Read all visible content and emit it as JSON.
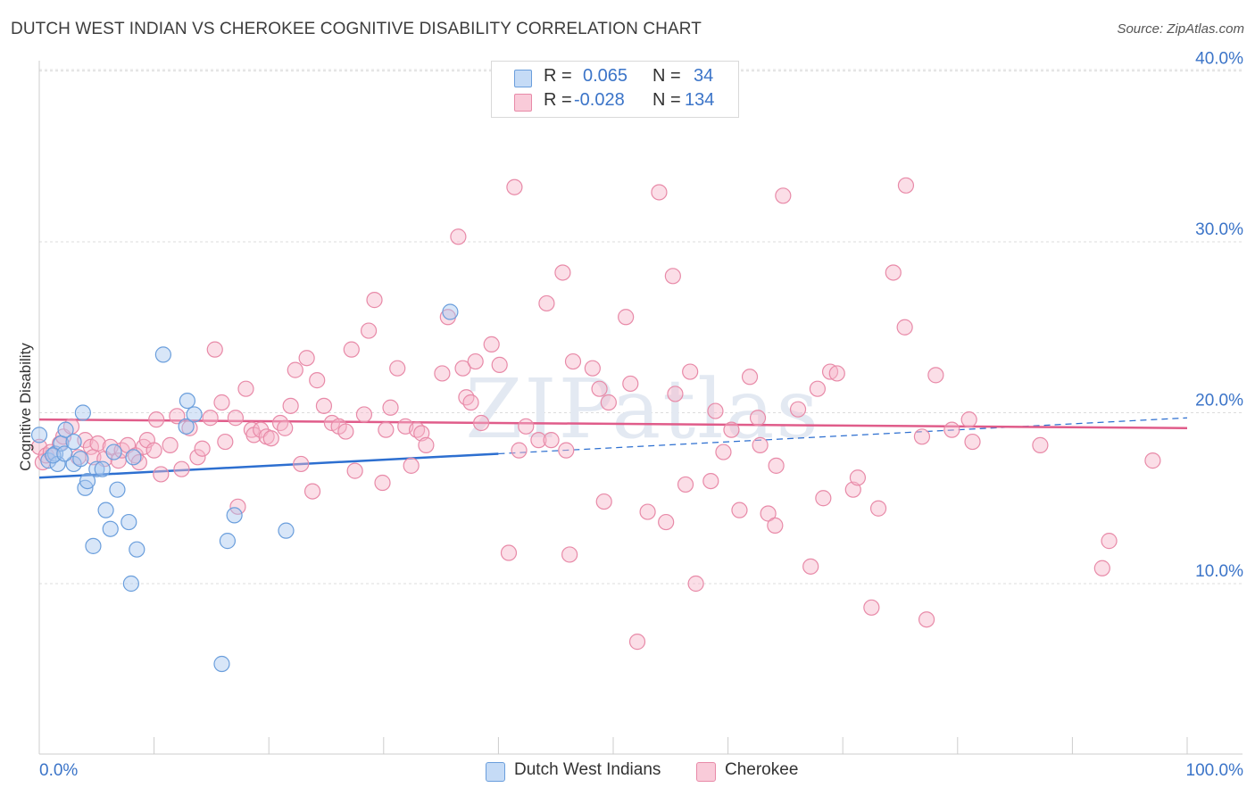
{
  "title": "DUTCH WEST INDIAN VS CHEROKEE COGNITIVE DISABILITY CORRELATION CHART",
  "source": "Source: ZipAtlas.com",
  "watermark": "ZIPatlas",
  "colors": {
    "blue_fill": "#a8c8f0",
    "blue_stroke": "#6a9edc",
    "blue_line": "#2d6fd0",
    "pink_fill": "#f7b6c9",
    "pink_stroke": "#e88aa8",
    "pink_line": "#e05c8a",
    "axis_text": "#3b74c8"
  },
  "legend_top": {
    "rows": [
      {
        "r_label": "R =",
        "r_value": "0.065",
        "n_label": "N =",
        "n_value": "34",
        "series": "blue"
      },
      {
        "r_label": "R =",
        "r_value": "-0.028",
        "n_label": "N =",
        "n_value": "134",
        "series": "pink"
      }
    ]
  },
  "legend_bottom": [
    {
      "label": "Dutch West Indians",
      "series": "blue"
    },
    {
      "label": "Cherokee",
      "series": "pink"
    }
  ],
  "chart_data": {
    "type": "scatter",
    "title": "DUTCH WEST INDIAN VS CHEROKEE COGNITIVE DISABILITY CORRELATION CHART",
    "xlabel": "",
    "ylabel": "Cognitive Disability",
    "xlim": [
      0,
      100
    ],
    "ylim": [
      0,
      42
    ],
    "x_tick_labels": [
      "0.0%",
      "100.0%"
    ],
    "y_ticks": [
      10,
      20,
      30,
      40
    ],
    "y_tick_labels": [
      "10.0%",
      "20.0%",
      "30.0%",
      "40.0%"
    ],
    "grid": "horizontal dashed",
    "legend": "top-center",
    "series": [
      {
        "name": "Dutch West Indians",
        "color": "blue",
        "R": 0.065,
        "N": 34,
        "trend": {
          "x": [
            0,
            40
          ],
          "y": [
            16.2,
            17.6
          ],
          "dashed_extension": {
            "x": [
              40,
              100
            ],
            "y": [
              17.6,
              19.7
            ]
          }
        },
        "points": [
          [
            0,
            18.7
          ],
          [
            0.8,
            17.2
          ],
          [
            1.4,
            17.6
          ],
          [
            1.6,
            17.0
          ],
          [
            1.9,
            18.2
          ],
          [
            2.3,
            19.0
          ],
          [
            3.0,
            18.3
          ],
          [
            3.0,
            17.0
          ],
          [
            3.6,
            17.3
          ],
          [
            3.8,
            20.0
          ],
          [
            4.0,
            15.6
          ],
          [
            4.2,
            16.0
          ],
          [
            4.7,
            12.2
          ],
          [
            5.0,
            16.7
          ],
          [
            5.5,
            16.7
          ],
          [
            5.8,
            14.3
          ],
          [
            6.2,
            13.2
          ],
          [
            6.5,
            17.7
          ],
          [
            6.8,
            15.5
          ],
          [
            7.8,
            13.6
          ],
          [
            8.0,
            10.0
          ],
          [
            8.2,
            17.4
          ],
          [
            8.5,
            12.0
          ],
          [
            10.8,
            23.4
          ],
          [
            12.9,
            20.7
          ],
          [
            12.8,
            19.2
          ],
          [
            13.5,
            19.9
          ],
          [
            15.9,
            5.3
          ],
          [
            16.4,
            12.5
          ],
          [
            17.0,
            14.0
          ],
          [
            21.5,
            13.1
          ],
          [
            35.8,
            25.9
          ],
          [
            1.2,
            17.5
          ],
          [
            2.2,
            17.6
          ]
        ]
      },
      {
        "name": "Cherokee",
        "color": "pink",
        "R": -0.028,
        "N": 134,
        "trend": {
          "x": [
            0,
            100
          ],
          "y": [
            19.6,
            19.1
          ]
        },
        "points": [
          [
            0,
            18.0
          ],
          [
            0.3,
            17.1
          ],
          [
            0.6,
            17.5
          ],
          [
            1.0,
            17.7
          ],
          [
            1.8,
            18.2
          ],
          [
            2.1,
            18.6
          ],
          [
            2.8,
            19.2
          ],
          [
            3.4,
            17.4
          ],
          [
            4.0,
            18.4
          ],
          [
            4.5,
            18.0
          ],
          [
            4.7,
            17.4
          ],
          [
            5.1,
            18.2
          ],
          [
            5.7,
            17.3
          ],
          [
            6.2,
            18.0
          ],
          [
            6.9,
            17.2
          ],
          [
            7.2,
            17.8
          ],
          [
            7.7,
            18.1
          ],
          [
            8.4,
            17.5
          ],
          [
            8.7,
            17.1
          ],
          [
            9.1,
            18.0
          ],
          [
            9.4,
            18.4
          ],
          [
            10.0,
            17.8
          ],
          [
            10.2,
            19.6
          ],
          [
            10.6,
            16.4
          ],
          [
            11.4,
            18.1
          ],
          [
            12.0,
            19.8
          ],
          [
            12.4,
            16.7
          ],
          [
            13.1,
            19.1
          ],
          [
            13.8,
            17.4
          ],
          [
            14.2,
            17.9
          ],
          [
            14.9,
            19.7
          ],
          [
            15.3,
            23.7
          ],
          [
            15.9,
            20.6
          ],
          [
            16.2,
            18.3
          ],
          [
            17.3,
            14.5
          ],
          [
            17.1,
            19.7
          ],
          [
            18.0,
            21.4
          ],
          [
            18.5,
            19.0
          ],
          [
            18.7,
            18.7
          ],
          [
            19.3,
            19.0
          ],
          [
            19.8,
            18.6
          ],
          [
            20.2,
            18.5
          ],
          [
            21.0,
            19.4
          ],
          [
            21.4,
            19.1
          ],
          [
            21.9,
            20.4
          ],
          [
            22.3,
            22.5
          ],
          [
            22.8,
            17.0
          ],
          [
            23.3,
            23.2
          ],
          [
            23.8,
            15.4
          ],
          [
            24.2,
            21.9
          ],
          [
            24.8,
            20.4
          ],
          [
            25.5,
            19.4
          ],
          [
            26.1,
            19.2
          ],
          [
            26.7,
            18.9
          ],
          [
            27.2,
            23.7
          ],
          [
            27.5,
            16.6
          ],
          [
            28.3,
            19.9
          ],
          [
            28.7,
            24.8
          ],
          [
            29.2,
            26.6
          ],
          [
            29.9,
            15.9
          ],
          [
            30.2,
            19.0
          ],
          [
            30.6,
            20.3
          ],
          [
            31.2,
            22.6
          ],
          [
            31.9,
            19.2
          ],
          [
            32.4,
            16.9
          ],
          [
            32.9,
            19.0
          ],
          [
            33.3,
            18.8
          ],
          [
            33.7,
            18.1
          ],
          [
            35.1,
            22.3
          ],
          [
            35.6,
            25.6
          ],
          [
            36.5,
            30.3
          ],
          [
            36.9,
            22.6
          ],
          [
            37.2,
            20.9
          ],
          [
            37.6,
            20.6
          ],
          [
            38.0,
            23.0
          ],
          [
            38.5,
            19.4
          ],
          [
            39.4,
            24.0
          ],
          [
            40.1,
            22.8
          ],
          [
            40.9,
            11.8
          ],
          [
            41.4,
            33.2
          ],
          [
            41.8,
            17.8
          ],
          [
            42.4,
            19.2
          ],
          [
            43.5,
            18.4
          ],
          [
            44.2,
            26.4
          ],
          [
            44.6,
            18.4
          ],
          [
            45.6,
            28.2
          ],
          [
            45.9,
            17.8
          ],
          [
            46.2,
            11.7
          ],
          [
            46.5,
            23.0
          ],
          [
            48.2,
            22.6
          ],
          [
            48.8,
            21.4
          ],
          [
            49.2,
            14.8
          ],
          [
            49.6,
            20.6
          ],
          [
            51.1,
            25.6
          ],
          [
            51.5,
            21.7
          ],
          [
            52.1,
            6.6
          ],
          [
            53.0,
            14.2
          ],
          [
            54.0,
            32.9
          ],
          [
            54.6,
            13.6
          ],
          [
            55.2,
            28.0
          ],
          [
            55.4,
            21.1
          ],
          [
            56.3,
            15.8
          ],
          [
            56.7,
            22.4
          ],
          [
            57.2,
            10.0
          ],
          [
            58.5,
            16.0
          ],
          [
            58.9,
            20.1
          ],
          [
            59.6,
            17.7
          ],
          [
            60.3,
            19.0
          ],
          [
            61.0,
            14.3
          ],
          [
            61.9,
            22.1
          ],
          [
            62.6,
            19.7
          ],
          [
            62.8,
            18.1
          ],
          [
            63.5,
            14.1
          ],
          [
            64.1,
            13.4
          ],
          [
            64.2,
            16.9
          ],
          [
            64.8,
            32.7
          ],
          [
            66.1,
            20.2
          ],
          [
            67.2,
            11.0
          ],
          [
            67.8,
            21.4
          ],
          [
            68.3,
            15.0
          ],
          [
            68.9,
            22.4
          ],
          [
            69.5,
            22.3
          ],
          [
            70.9,
            15.5
          ],
          [
            71.3,
            16.2
          ],
          [
            72.5,
            8.6
          ],
          [
            73.1,
            14.4
          ],
          [
            74.4,
            28.2
          ],
          [
            75.4,
            25.0
          ],
          [
            75.5,
            33.3
          ],
          [
            76.9,
            18.6
          ],
          [
            77.3,
            7.9
          ],
          [
            78.1,
            22.2
          ],
          [
            79.5,
            19.0
          ],
          [
            81.0,
            19.6
          ],
          [
            81.3,
            18.3
          ],
          [
            87.2,
            18.1
          ],
          [
            92.6,
            10.9
          ],
          [
            93.2,
            12.5
          ],
          [
            97.0,
            17.2
          ]
        ]
      }
    ]
  }
}
